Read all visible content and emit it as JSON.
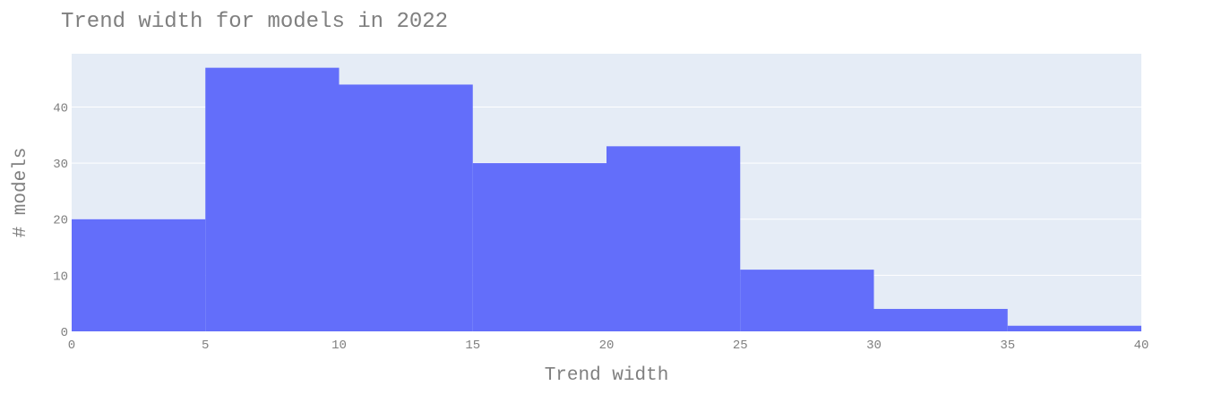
{
  "chart_data": {
    "type": "bar",
    "subtype": "histogram",
    "title": "Trend width for models in 2022",
    "xlabel": "Trend width",
    "ylabel": "# models",
    "bins": [
      {
        "start": 0,
        "end": 5,
        "value": 20
      },
      {
        "start": 5,
        "end": 10,
        "value": 47
      },
      {
        "start": 10,
        "end": 15,
        "value": 44
      },
      {
        "start": 15,
        "end": 20,
        "value": 30
      },
      {
        "start": 20,
        "end": 25,
        "value": 33
      },
      {
        "start": 25,
        "end": 30,
        "value": 11
      },
      {
        "start": 30,
        "end": 35,
        "value": 4
      },
      {
        "start": 35,
        "end": 40,
        "value": 1
      }
    ],
    "xlim": [
      0,
      40
    ],
    "ylim": [
      0,
      49.5
    ],
    "xticks": [
      "0",
      "5",
      "10",
      "15",
      "20",
      "25",
      "30",
      "35",
      "40"
    ],
    "yticks": [
      "0",
      "10",
      "20",
      "30",
      "40"
    ],
    "grid": true,
    "colors": {
      "bar": "#636efa",
      "plot_background": "#e5ecf6",
      "grid": "#ffffff",
      "text": "#7f7f7f"
    }
  }
}
